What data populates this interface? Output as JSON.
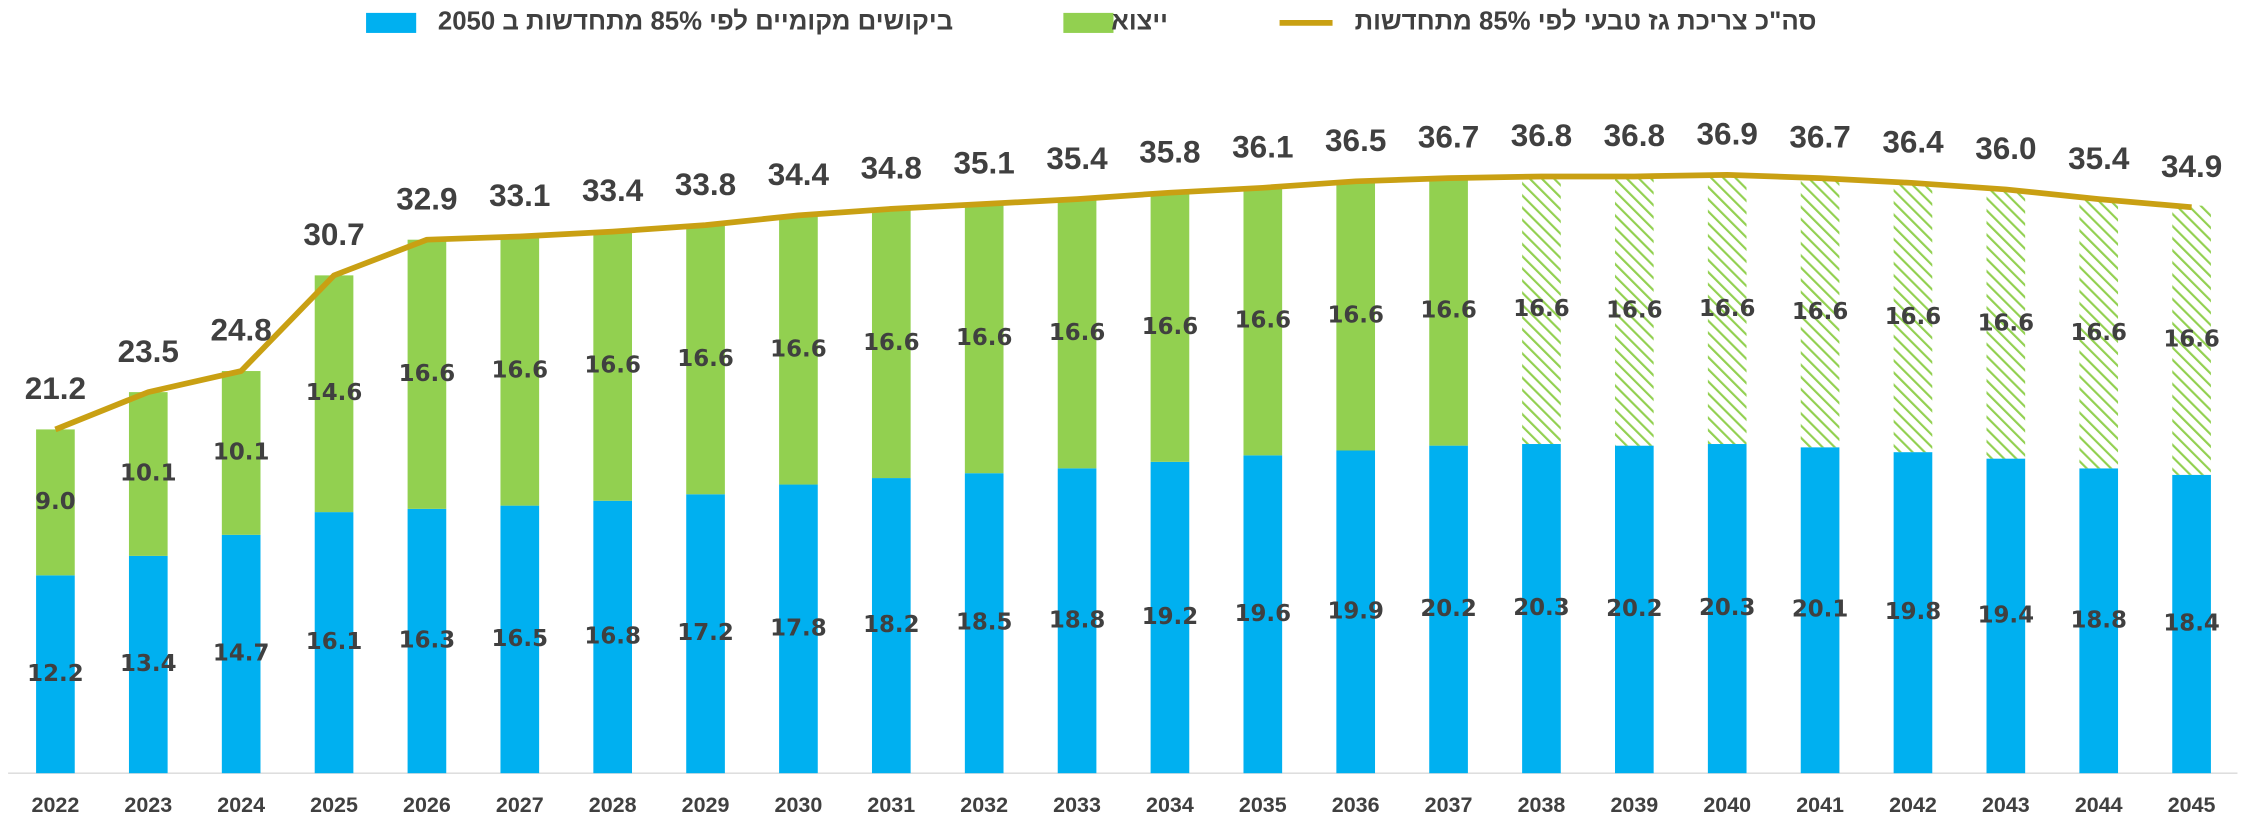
{
  "chart_data": {
    "type": "stacked-bar-line",
    "categories": [
      "2022",
      "2023",
      "2024",
      "2025",
      "2026",
      "2027",
      "2028",
      "2029",
      "2030",
      "2031",
      "2032",
      "2033",
      "2034",
      "2035",
      "2036",
      "2037",
      "2038",
      "2039",
      "2040",
      "2041",
      "2042",
      "2043",
      "2044",
      "2045"
    ],
    "series": [
      {
        "name": "ביקושים מקומיים לפי 85% מתחדשות ב 2050",
        "type": "bar",
        "color": "#00b0f0",
        "values": [
          12.2,
          13.4,
          14.7,
          16.1,
          16.3,
          16.5,
          16.8,
          17.2,
          17.8,
          18.2,
          18.5,
          18.8,
          19.2,
          19.6,
          19.9,
          20.2,
          20.3,
          20.2,
          20.3,
          20.1,
          19.8,
          19.4,
          18.8,
          18.4
        ],
        "value_labels": [
          "12.2",
          "13.4",
          "14.7",
          "16.1",
          "16.3",
          "16.5",
          "16.8",
          "17.2",
          "17.8",
          "18.2",
          "18.5",
          "18.8",
          "19.2",
          "19.6",
          "19.9",
          "20.2",
          "20.3",
          "20.2",
          "20.3",
          "20.1",
          "19.8",
          "19.4",
          "18.8",
          "18.4"
        ]
      },
      {
        "name": "ייצוא",
        "type": "bar",
        "color": "#92d050",
        "hatched_from": "2038",
        "values": [
          9.0,
          10.1,
          10.1,
          14.6,
          16.6,
          16.6,
          16.6,
          16.6,
          16.6,
          16.6,
          16.6,
          16.6,
          16.6,
          16.6,
          16.6,
          16.6,
          16.6,
          16.6,
          16.6,
          16.6,
          16.6,
          16.6,
          16.6,
          16.6
        ],
        "value_labels": [
          "9.0",
          "10.1",
          "10.1",
          "14.6",
          "16.6",
          "16.6",
          "16.6",
          "16.6",
          "16.6",
          "16.6",
          "16.6",
          "16.6",
          "16.6",
          "16.6",
          "16.6",
          "16.6",
          "16.6",
          "16.6",
          "16.6",
          "16.6",
          "16.6",
          "16.6",
          "16.6",
          "16.6"
        ]
      },
      {
        "name": "סה\"כ צריכת גז טבעי לפי 85% מתחדשות",
        "type": "line",
        "color": "#c9a013",
        "values": [
          21.2,
          23.5,
          24.8,
          30.7,
          32.9,
          33.1,
          33.4,
          33.8,
          34.4,
          34.8,
          35.1,
          35.4,
          35.8,
          36.1,
          36.5,
          36.7,
          36.8,
          36.8,
          36.9,
          36.7,
          36.4,
          36.0,
          35.4,
          34.9
        ],
        "value_labels": [
          "21.2",
          "23.5",
          "24.8",
          "30.7",
          "32.9",
          "33.1",
          "33.4",
          "33.8",
          "34.4",
          "34.8",
          "35.1",
          "35.4",
          "35.8",
          "36.1",
          "36.5",
          "36.7",
          "36.8",
          "36.8",
          "36.9",
          "36.7",
          "36.4",
          "36.0",
          "35.4",
          "34.9"
        ]
      }
    ],
    "ylim": [
      0,
      40
    ]
  }
}
